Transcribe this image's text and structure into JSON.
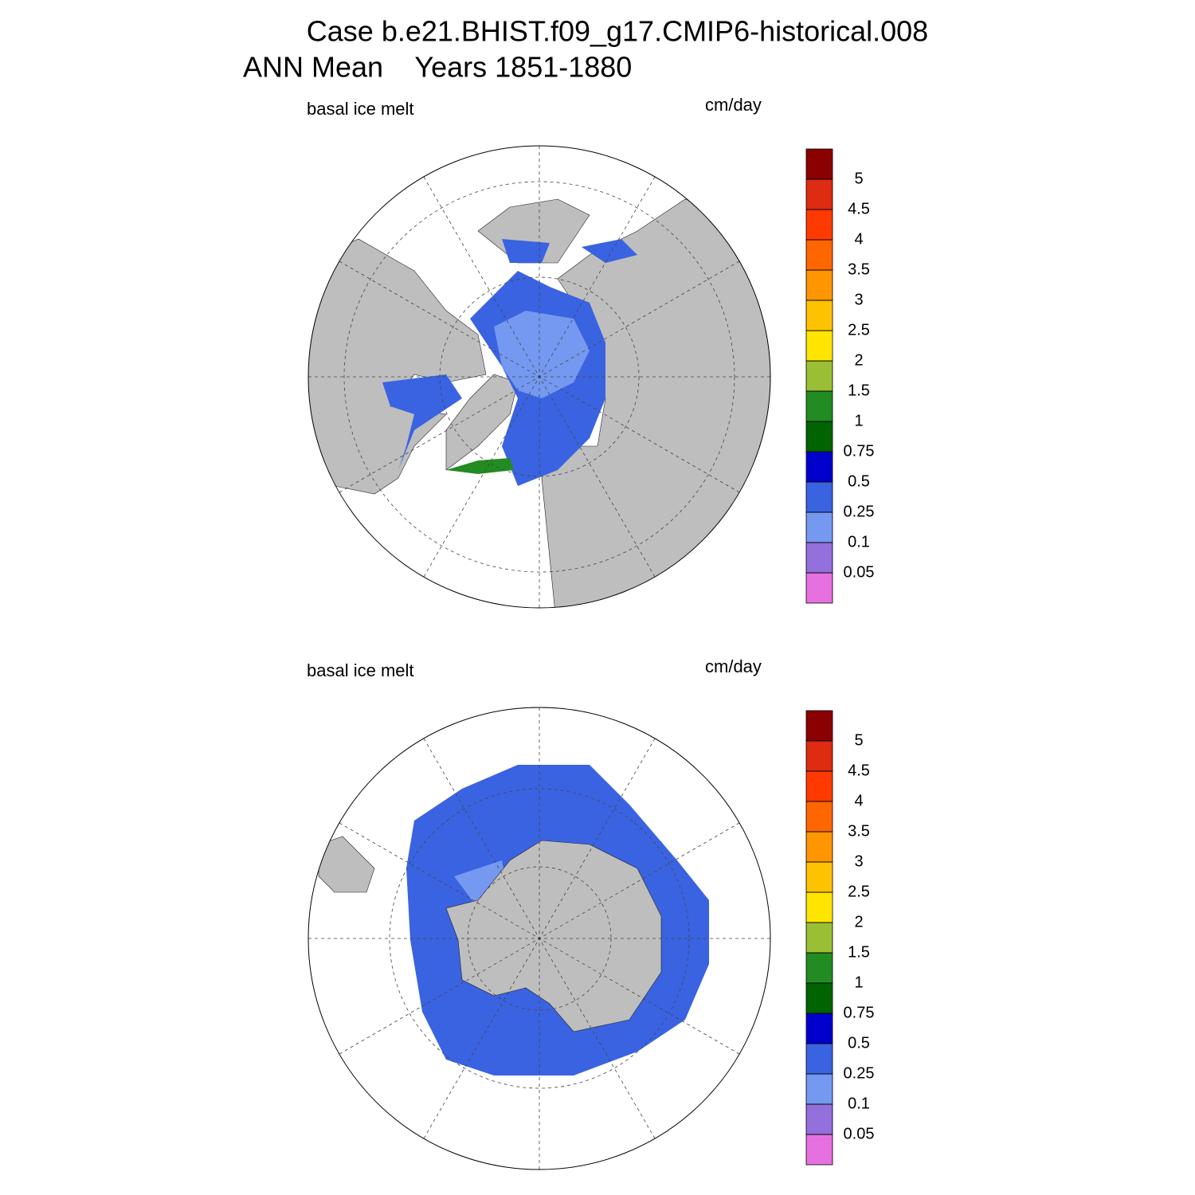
{
  "title": [
    "Case b.e21.BHIST.f09_g17.CMIP6-historical.008",
    "ANN Mean    Years 1851-1880"
  ],
  "panels": [
    {
      "hemisphere": "north",
      "left_label": "basal ice melt",
      "units": "cm/day",
      "colorbar": {
        "levels": [
          0.05,
          0.1,
          0.25,
          0.5,
          0.75,
          1,
          1.5,
          2,
          2.5,
          3,
          3.5,
          4,
          4.5,
          5
        ],
        "colors": [
          "#e770e0",
          "#9370db",
          "#7599f0",
          "#3a63e2",
          "#0000cd",
          "#006400",
          "#228b22",
          "#9abf34",
          "#ffe500",
          "#ffc200",
          "#ff9500",
          "#ff6600",
          "#ff3a00",
          "#dd2c11",
          "#8b0000"
        ]
      }
    },
    {
      "hemisphere": "south",
      "left_label": "basal ice melt",
      "units": "cm/day",
      "colorbar": {
        "levels": [
          0.05,
          0.1,
          0.25,
          0.5,
          0.75,
          1,
          1.5,
          2,
          2.5,
          3,
          3.5,
          4,
          4.5,
          5
        ],
        "colors": [
          "#e770e0",
          "#9370db",
          "#7599f0",
          "#3a63e2",
          "#0000cd",
          "#006400",
          "#228b22",
          "#9abf34",
          "#ffe500",
          "#ffc200",
          "#ff9500",
          "#ff6600",
          "#ff3a00",
          "#dd2c11",
          "#8b0000"
        ]
      }
    }
  ]
}
